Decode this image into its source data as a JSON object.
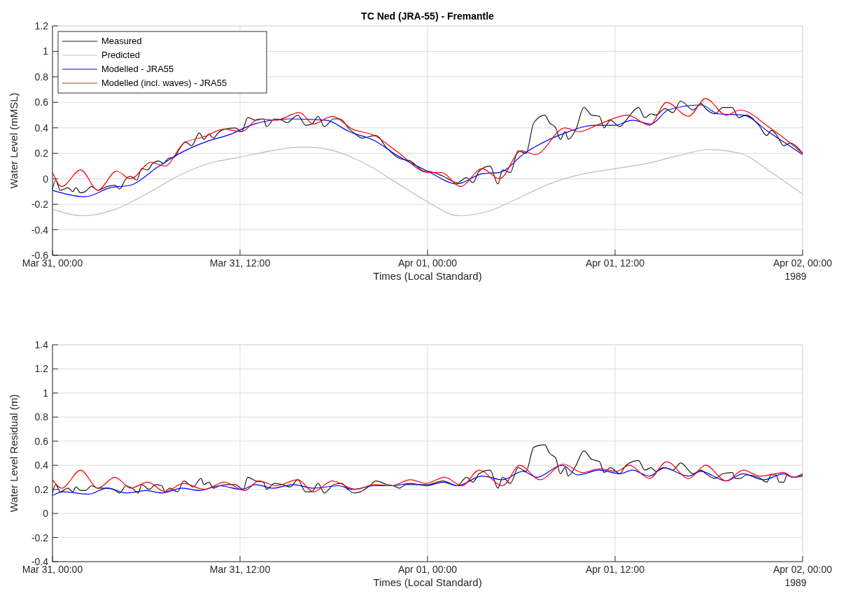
{
  "chart_data": [
    {
      "type": "line",
      "title": "TC Ned (JRA-55) - Fremantle",
      "xlabel": "Times (Local Standard)",
      "ylabel": "Water Level (mMSL)",
      "annotations": [
        "1989"
      ],
      "xlim": [
        "1989-03-31T00:00",
        "1989-04-02T00:00"
      ],
      "xticks": [
        {
          "value": "1989-03-31T00:00",
          "label": "Mar 31, 00:00"
        },
        {
          "value": "1989-03-31T12:00",
          "label": "Mar 31, 12:00"
        },
        {
          "value": "1989-04-01T00:00",
          "label": "Apr 01, 00:00"
        },
        {
          "value": "1989-04-01T12:00",
          "label": "Apr 01, 12:00"
        },
        {
          "value": "1989-04-02T00:00",
          "label": "Apr 02, 00:00"
        }
      ],
      "ylim": [
        -0.6,
        1.2
      ],
      "yticks": [
        -0.6,
        -0.4,
        -0.2,
        0,
        0.2,
        0.4,
        0.6,
        0.8,
        1,
        1.2
      ],
      "grid": true,
      "legend": "top left",
      "series": [
        {
          "name": "Measured",
          "color": "#1a1a1a",
          "x": [
            "1989-03-31T00:00",
            "1989-03-31T00:12",
            "1989-03-31T00:30",
            "1989-03-31T01:00",
            "1989-03-31T01:18",
            "1989-03-31T01:30",
            "1989-03-31T01:48",
            "1989-03-31T02:06",
            "1989-03-31T02:30",
            "1989-03-31T02:54",
            "1989-03-31T03:30",
            "1989-03-31T04:00",
            "1989-03-31T04:18",
            "1989-03-31T04:42",
            "1989-03-31T05:00",
            "1989-03-31T05:24",
            "1989-03-31T05:42",
            "1989-03-31T06:06",
            "1989-03-31T06:24",
            "1989-03-31T06:48",
            "1989-03-31T07:06",
            "1989-03-31T07:24",
            "1989-03-31T07:48",
            "1989-03-31T08:06",
            "1989-03-31T08:30",
            "1989-03-31T08:54",
            "1989-03-31T09:24",
            "1989-03-31T09:42",
            "1989-03-31T10:00",
            "1989-03-31T10:18",
            "1989-03-31T10:36",
            "1989-03-31T11:00",
            "1989-03-31T11:42",
            "1989-03-31T12:06",
            "1989-03-31T12:30",
            "1989-03-31T13:00",
            "1989-03-31T13:30",
            "1989-03-31T13:42",
            "1989-03-31T14:12",
            "1989-03-31T14:42",
            "1989-03-31T15:00",
            "1989-03-31T15:42",
            "1989-03-31T16:12",
            "1989-03-31T16:36",
            "1989-03-31T17:00",
            "1989-03-31T17:24",
            "1989-03-31T18:00",
            "1989-03-31T18:24",
            "1989-03-31T19:00",
            "1989-03-31T19:24",
            "1989-03-31T19:48",
            "1989-03-31T20:42",
            "1989-03-31T21:24",
            "1989-03-31T22:12",
            "1989-03-31T22:54",
            "1989-03-31T23:48",
            "1989-04-01T00:00",
            "1989-04-01T01:00",
            "1989-04-01T01:54",
            "1989-04-01T02:30",
            "1989-04-01T02:54",
            "1989-04-01T03:18",
            "1989-04-01T04:00",
            "1989-04-01T04:30",
            "1989-04-01T04:48",
            "1989-04-01T05:18",
            "1989-04-01T05:48",
            "1989-04-01T06:18",
            "1989-04-01T06:48",
            "1989-04-01T07:30",
            "1989-04-01T07:48",
            "1989-04-01T08:12",
            "1989-04-01T08:30",
            "1989-04-01T08:48",
            "1989-04-01T09:00",
            "1989-04-01T09:30",
            "1989-04-01T10:00",
            "1989-04-01T10:30",
            "1989-04-01T11:00",
            "1989-04-01T11:18",
            "1989-04-01T11:42",
            "1989-04-01T12:18",
            "1989-04-01T12:42",
            "1989-04-01T13:30",
            "1989-04-01T13:54",
            "1989-04-01T14:18",
            "1989-04-01T14:36",
            "1989-04-01T15:12",
            "1989-04-01T15:42",
            "1989-04-01T16:12",
            "1989-04-01T17:00",
            "1989-04-01T17:30",
            "1989-04-01T17:48",
            "1989-04-01T18:24",
            "1989-04-01T18:54",
            "1989-04-01T19:30",
            "1989-04-01T19:54",
            "1989-04-01T20:24",
            "1989-04-01T21:12",
            "1989-04-01T21:42",
            "1989-04-01T22:00",
            "1989-04-01T22:18",
            "1989-04-01T22:48",
            "1989-04-01T23:12",
            "1989-04-02T00:00"
          ],
          "values": [
            -0.08,
            -0.01,
            -0.09,
            -0.07,
            -0.1,
            -0.07,
            -0.11,
            -0.1,
            -0.06,
            -0.09,
            -0.06,
            -0.05,
            -0.08,
            0,
            0.02,
            -0.01,
            0.08,
            0.07,
            0.12,
            0.14,
            0.12,
            0.16,
            0.17,
            0.23,
            0.29,
            0.26,
            0.36,
            0.31,
            0.35,
            0.32,
            0.36,
            0.39,
            0.4,
            0.37,
            0.48,
            0.46,
            0.47,
            0.41,
            0.47,
            0.46,
            0.44,
            0.5,
            0.42,
            0.43,
            0.49,
            0.41,
            0.47,
            0.47,
            0.39,
            0.35,
            0.32,
            0.34,
            0.24,
            0.16,
            0.14,
            0.06,
            0.06,
            0.02,
            -0.03,
            0.01,
            -0.03,
            0.06,
            0.1,
            -0.04,
            0.07,
            0.05,
            0.22,
            0.2,
            0.44,
            0.5,
            0.44,
            0.4,
            0.31,
            0.37,
            0.31,
            0.39,
            0.56,
            0.5,
            0.49,
            0.4,
            0.46,
            0.41,
            0.46,
            0.56,
            0.48,
            0.51,
            0.5,
            0.55,
            0.52,
            0.61,
            0.54,
            0.59,
            0.55,
            0.51,
            0.56,
            0.56,
            0.48,
            0.5,
            0.42,
            0.34,
            0.38,
            0.35,
            0.26,
            0.28,
            0.2
          ]
        },
        {
          "name": "Predicted",
          "color": "#bdbdbd",
          "x": [
            "1989-03-31T00:00",
            "1989-03-31T02:00",
            "1989-03-31T04:00",
            "1989-03-31T06:00",
            "1989-03-31T08:00",
            "1989-03-31T10:00",
            "1989-03-31T12:00",
            "1989-03-31T14:00",
            "1989-03-31T16:00",
            "1989-03-31T18:00",
            "1989-03-31T20:00",
            "1989-03-31T22:00",
            "1989-04-01T00:00",
            "1989-04-01T02:00",
            "1989-04-01T04:00",
            "1989-04-01T06:00",
            "1989-04-01T08:00",
            "1989-04-01T10:00",
            "1989-04-01T12:00",
            "1989-04-01T14:00",
            "1989-04-01T16:00",
            "1989-04-01T18:00",
            "1989-04-01T20:00",
            "1989-04-01T22:00",
            "1989-04-02T00:00"
          ],
          "values": [
            -0.24,
            -0.29,
            -0.24,
            -0.12,
            0.02,
            0.12,
            0.17,
            0.22,
            0.25,
            0.22,
            0.12,
            -0.03,
            -0.18,
            -0.29,
            -0.25,
            -0.14,
            -0.03,
            0.04,
            0.08,
            0.12,
            0.18,
            0.23,
            0.2,
            0.05,
            -0.12
          ]
        },
        {
          "name": "Modelled - JRA55",
          "color": "#0000ff",
          "x": [
            "1989-03-31T00:00",
            "1989-03-31T02:06",
            "1989-03-31T03:42",
            "1989-03-31T05:00",
            "1989-03-31T06:42",
            "1989-03-31T08:18",
            "1989-03-31T09:48",
            "1989-03-31T11:24",
            "1989-03-31T12:54",
            "1989-03-31T15:12",
            "1989-03-31T17:30",
            "1989-03-31T19:00",
            "1989-03-31T20:36",
            "1989-03-31T22:06",
            "1989-04-01T00:00",
            "1989-04-01T01:54",
            "1989-04-01T03:30",
            "1989-04-01T04:36",
            "1989-04-01T06:12",
            "1989-04-01T08:48",
            "1989-04-01T10:42",
            "1989-04-01T12:00",
            "1989-04-01T13:06",
            "1989-04-01T14:18",
            "1989-04-01T15:24",
            "1989-04-01T17:30",
            "1989-04-01T18:36",
            "1989-04-01T20:12",
            "1989-04-01T21:48",
            "1989-04-02T00:00"
          ],
          "values": [
            -0.09,
            -0.14,
            -0.07,
            -0.05,
            0.09,
            0.21,
            0.29,
            0.35,
            0.43,
            0.47,
            0.46,
            0.37,
            0.3,
            0.18,
            0.06,
            -0.04,
            0.04,
            0.05,
            0.2,
            0.36,
            0.42,
            0.42,
            0.46,
            0.43,
            0.54,
            0.58,
            0.51,
            0.5,
            0.37,
            0.19
          ]
        },
        {
          "name": "Modelled (incl. waves) - JRA55",
          "color": "#ff0000",
          "x": [
            "1989-03-31T00:00",
            "1989-03-31T00:36",
            "1989-03-31T01:48",
            "1989-03-31T02:54",
            "1989-03-31T04:06",
            "1989-03-31T05:00",
            "1989-03-31T06:18",
            "1989-03-31T07:12",
            "1989-03-31T08:24",
            "1989-03-31T09:42",
            "1989-03-31T11:00",
            "1989-03-31T12:06",
            "1989-03-31T13:12",
            "1989-03-31T14:18",
            "1989-03-31T15:48",
            "1989-03-31T16:42",
            "1989-03-31T17:54",
            "1989-03-31T19:12",
            "1989-03-31T20:36",
            "1989-03-31T22:06",
            "1989-04-01T00:00",
            "1989-04-01T00:54",
            "1989-04-01T02:06",
            "1989-04-01T03:30",
            "1989-04-01T04:36",
            "1989-04-01T06:00",
            "1989-04-01T06:54",
            "1989-04-01T08:48",
            "1989-04-01T09:42",
            "1989-04-01T11:00",
            "1989-04-01T12:48",
            "1989-04-01T14:12",
            "1989-04-01T15:18",
            "1989-04-01T16:42",
            "1989-04-01T17:48",
            "1989-04-01T19:06",
            "1989-04-01T20:00",
            "1989-04-01T21:48",
            "1989-04-01T22:42",
            "1989-04-02T00:00"
          ],
          "values": [
            0.05,
            -0.06,
            0.07,
            -0.09,
            0.06,
            0,
            0.13,
            0.1,
            0.28,
            0.33,
            0.39,
            0.37,
            0.47,
            0.46,
            0.52,
            0.43,
            0.49,
            0.39,
            0.34,
            0.21,
            0.05,
            0.05,
            -0.06,
            0.08,
            0,
            0.22,
            0.19,
            0.4,
            0.37,
            0.43,
            0.5,
            0.42,
            0.6,
            0.49,
            0.63,
            0.5,
            0.54,
            0.41,
            0.33,
            0.2
          ]
        }
      ]
    },
    {
      "type": "line",
      "xlabel": "Times (Local Standard)",
      "ylabel": "Water Level Residual (m)",
      "annotations": [
        "1989"
      ],
      "xlim": [
        "1989-03-31T00:00",
        "1989-04-02T00:00"
      ],
      "xticks": [
        {
          "value": "1989-03-31T00:00",
          "label": "Mar 31, 00:00"
        },
        {
          "value": "1989-03-31T12:00",
          "label": "Mar 31, 12:00"
        },
        {
          "value": "1989-04-01T00:00",
          "label": "Apr 01, 00:00"
        },
        {
          "value": "1989-04-01T12:00",
          "label": "Apr 01, 12:00"
        },
        {
          "value": "1989-04-02T00:00",
          "label": "Apr 02, 00:00"
        }
      ],
      "ylim": [
        -0.4,
        1.4
      ],
      "yticks": [
        -0.4,
        -0.2,
        0,
        0.2,
        0.4,
        0.6,
        0.8,
        1,
        1.2,
        1.4
      ],
      "grid": true,
      "series": [
        {
          "color": "#1a1a1a",
          "x": [
            "1989-03-31T00:00",
            "1989-03-31T00:12",
            "1989-03-31T00:30",
            "1989-03-31T01:00",
            "1989-03-31T01:18",
            "1989-03-31T01:30",
            "1989-03-31T01:48",
            "1989-03-31T02:06",
            "1989-03-31T02:30",
            "1989-03-31T02:54",
            "1989-03-31T03:30",
            "1989-03-31T03:54",
            "1989-03-31T04:18",
            "1989-03-31T04:42",
            "1989-03-31T05:06",
            "1989-03-31T05:30",
            "1989-03-31T05:42",
            "1989-03-31T06:12",
            "1989-03-31T06:36",
            "1989-03-31T07:00",
            "1989-03-31T07:12",
            "1989-03-31T07:30",
            "1989-03-31T08:00",
            "1989-03-31T08:24",
            "1989-03-31T09:00",
            "1989-03-31T09:30",
            "1989-03-31T09:42",
            "1989-03-31T10:00",
            "1989-03-31T10:18",
            "1989-03-31T10:42",
            "1989-03-31T11:12",
            "1989-03-31T11:42",
            "1989-03-31T12:12",
            "1989-03-31T12:30",
            "1989-03-31T13:00",
            "1989-03-31T13:30",
            "1989-03-31T13:42",
            "1989-03-31T14:12",
            "1989-03-31T14:42",
            "1989-03-31T15:12",
            "1989-03-31T15:42",
            "1989-03-31T16:12",
            "1989-03-31T16:36",
            "1989-03-31T17:00",
            "1989-03-31T17:24",
            "1989-03-31T18:00",
            "1989-03-31T18:30",
            "1989-03-31T18:54",
            "1989-03-31T19:18",
            "1989-03-31T19:42",
            "1989-03-31T20:18",
            "1989-03-31T20:42",
            "1989-03-31T21:24",
            "1989-03-31T21:48",
            "1989-03-31T22:12",
            "1989-03-31T22:36",
            "1989-03-31T23:00",
            "1989-03-31T23:30",
            "1989-04-01T00:00",
            "1989-04-01T01:00",
            "1989-04-01T01:54",
            "1989-04-01T02:30",
            "1989-04-01T02:54",
            "1989-04-01T03:18",
            "1989-04-01T04:00",
            "1989-04-01T04:30",
            "1989-04-01T04:48",
            "1989-04-01T05:18",
            "1989-04-01T05:48",
            "1989-04-01T06:18",
            "1989-04-01T06:48",
            "1989-04-01T07:30",
            "1989-04-01T07:48",
            "1989-04-01T08:12",
            "1989-04-01T08:30",
            "1989-04-01T08:48",
            "1989-04-01T09:00",
            "1989-04-01T09:30",
            "1989-04-01T10:00",
            "1989-04-01T10:30",
            "1989-04-01T11:00",
            "1989-04-01T11:18",
            "1989-04-01T11:42",
            "1989-04-01T12:18",
            "1989-04-01T12:42",
            "1989-04-01T13:30",
            "1989-04-01T13:54",
            "1989-04-01T14:18",
            "1989-04-01T14:36",
            "1989-04-01T15:12",
            "1989-04-01T15:42",
            "1989-04-01T16:12",
            "1989-04-01T17:00",
            "1989-04-01T17:30",
            "1989-04-01T17:48",
            "1989-04-01T18:24",
            "1989-04-01T18:54",
            "1989-04-01T19:30",
            "1989-04-01T19:42",
            "1989-04-01T20:00",
            "1989-04-01T20:24",
            "1989-04-01T21:12",
            "1989-04-01T21:42",
            "1989-04-01T22:00",
            "1989-04-01T22:18",
            "1989-04-01T22:30",
            "1989-04-01T22:48",
            "1989-04-01T23:00",
            "1989-04-01T23:24",
            "1989-04-02T00:00"
          ],
          "values": [
            0.17,
            0.24,
            0.18,
            0.21,
            0.18,
            0.22,
            0.19,
            0.19,
            0.23,
            0.21,
            0.21,
            0.2,
            0.17,
            0.23,
            0.21,
            0.17,
            0.24,
            0.2,
            0.24,
            0.23,
            0.18,
            0.21,
            0.18,
            0.27,
            0.22,
            0.29,
            0.24,
            0.26,
            0.21,
            0.23,
            0.24,
            0.24,
            0.2,
            0.3,
            0.27,
            0.26,
            0.2,
            0.25,
            0.24,
            0.22,
            0.28,
            0.18,
            0.18,
            0.25,
            0.17,
            0.24,
            0.25,
            0.2,
            0.17,
            0.18,
            0.23,
            0.27,
            0.24,
            0.23,
            0.21,
            0.24,
            0.24,
            0.24,
            0.24,
            0.27,
            0.23,
            0.3,
            0.26,
            0.33,
            0.36,
            0.21,
            0.3,
            0.25,
            0.38,
            0.35,
            0.55,
            0.57,
            0.5,
            0.46,
            0.33,
            0.38,
            0.31,
            0.4,
            0.52,
            0.45,
            0.43,
            0.34,
            0.38,
            0.33,
            0.4,
            0.44,
            0.36,
            0.38,
            0.35,
            0.38,
            0.36,
            0.42,
            0.33,
            0.36,
            0.33,
            0.29,
            0.33,
            0.34,
            0.29,
            0.29,
            0.32,
            0.3,
            0.26,
            0.32,
            0.32,
            0.26,
            0.26,
            0.32,
            0.3,
            0.32
          ]
        },
        {
          "color": "#0000ff",
          "x": [
            "1989-03-31T00:00",
            "1989-03-31T00:42",
            "1989-03-31T02:18",
            "1989-03-31T03:30",
            "1989-03-31T04:42",
            "1989-03-31T06:00",
            "1989-03-31T07:00",
            "1989-03-31T08:18",
            "1989-03-31T09:24",
            "1989-03-31T10:42",
            "1989-03-31T12:06",
            "1989-03-31T13:00",
            "1989-03-31T14:06",
            "1989-03-31T15:24",
            "1989-03-31T16:42",
            "1989-03-31T18:18",
            "1989-03-31T19:12",
            "1989-03-31T20:36",
            "1989-03-31T21:48",
            "1989-03-31T22:54",
            "1989-03-31T23:54",
            "1989-04-01T01:00",
            "1989-04-01T01:54",
            "1989-04-01T03:30",
            "1989-04-01T04:48",
            "1989-04-01T06:06",
            "1989-04-01T07:00",
            "1989-04-01T08:36",
            "1989-04-01T09:36",
            "1989-04-01T11:00",
            "1989-04-01T12:18",
            "1989-04-01T13:06",
            "1989-04-01T14:12",
            "1989-04-01T15:06",
            "1989-04-01T16:42",
            "1989-04-01T17:30",
            "1989-04-01T19:06",
            "1989-04-01T20:12",
            "1989-04-01T21:30",
            "1989-04-01T22:48",
            "1989-04-01T23:24",
            "1989-04-02T00:00"
          ],
          "values": [
            0.15,
            0.18,
            0.16,
            0.21,
            0.17,
            0.19,
            0.17,
            0.21,
            0.19,
            0.23,
            0.2,
            0.24,
            0.21,
            0.24,
            0.21,
            0.23,
            0.2,
            0.23,
            0.23,
            0.25,
            0.23,
            0.26,
            0.23,
            0.31,
            0.28,
            0.35,
            0.3,
            0.4,
            0.32,
            0.36,
            0.33,
            0.36,
            0.31,
            0.38,
            0.31,
            0.35,
            0.27,
            0.33,
            0.28,
            0.33,
            0.3,
            0.31
          ]
        },
        {
          "color": "#ff0000",
          "x": [
            "1989-03-31T00:00",
            "1989-03-31T00:36",
            "1989-03-31T01:48",
            "1989-03-31T02:54",
            "1989-03-31T04:00",
            "1989-03-31T05:00",
            "1989-03-31T06:06",
            "1989-03-31T07:12",
            "1989-03-31T08:24",
            "1989-03-31T09:42",
            "1989-03-31T11:00",
            "1989-03-31T12:18",
            "1989-03-31T13:12",
            "1989-03-31T14:18",
            "1989-03-31T15:42",
            "1989-03-31T16:42",
            "1989-03-31T17:54",
            "1989-03-31T19:24",
            "1989-03-31T20:36",
            "1989-03-31T21:42",
            "1989-03-31T22:54",
            "1989-03-31T23:54",
            "1989-04-01T01:06",
            "1989-04-01T02:12",
            "1989-04-01T03:18",
            "1989-04-01T04:48",
            "1989-04-01T05:54",
            "1989-04-01T07:12",
            "1989-04-01T08:42",
            "1989-04-01T09:54",
            "1989-04-01T11:00",
            "1989-04-01T12:06",
            "1989-04-01T12:54",
            "1989-04-01T14:12",
            "1989-04-01T15:18",
            "1989-04-01T16:42",
            "1989-04-01T17:48",
            "1989-04-01T19:06",
            "1989-04-01T20:12",
            "1989-04-01T21:18",
            "1989-04-01T22:48",
            "1989-04-01T23:24",
            "1989-04-02T00:00"
          ],
          "values": [
            0.28,
            0.21,
            0.36,
            0.21,
            0.3,
            0.21,
            0.26,
            0.18,
            0.25,
            0.2,
            0.26,
            0.19,
            0.27,
            0.23,
            0.28,
            0.18,
            0.27,
            0.2,
            0.24,
            0.23,
            0.28,
            0.25,
            0.3,
            0.23,
            0.36,
            0.23,
            0.4,
            0.28,
            0.41,
            0.34,
            0.37,
            0.35,
            0.4,
            0.29,
            0.43,
            0.29,
            0.4,
            0.27,
            0.36,
            0.31,
            0.34,
            0.3,
            0.33
          ]
        }
      ]
    }
  ]
}
